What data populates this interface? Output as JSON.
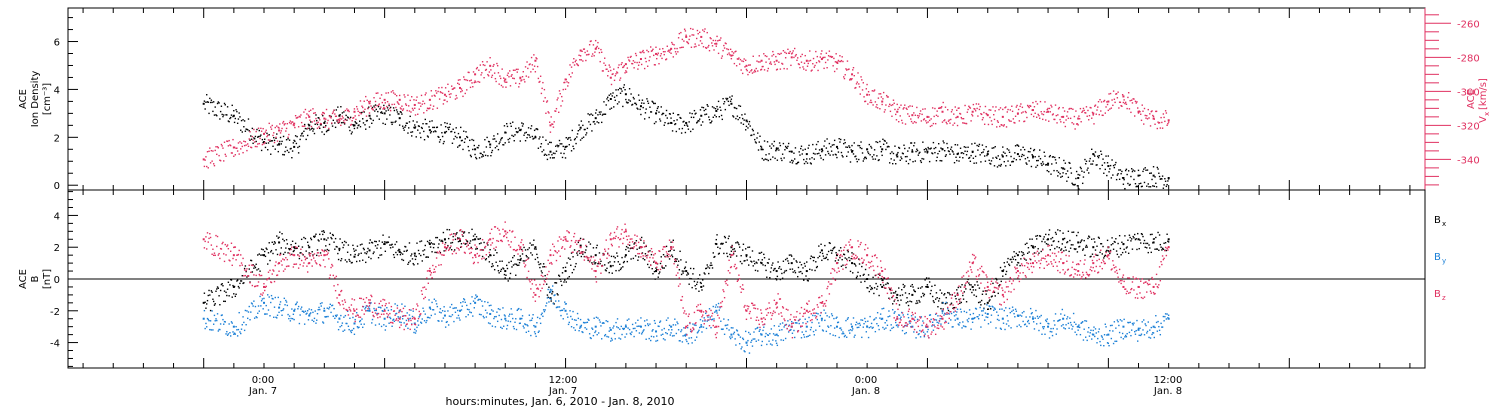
{
  "colors": {
    "black_series": "#000000",
    "red_series": "#e03060",
    "blue_series": "#1a7fd6",
    "frame": "#000000"
  },
  "xlabel": "hours:minutes, Jan.  6, 2010 - Jan.  8, 2010",
  "chart_data": [
    {
      "type": "scatter",
      "panel": "top",
      "left_axis": {
        "label": [
          "ACE",
          "Ion Density",
          "[cm⁻³]"
        ],
        "ylim": [
          -0.2,
          7.4
        ],
        "ticks": [
          0,
          2,
          4,
          6
        ],
        "tick_labels": [
          "0",
          "2",
          "4",
          "6"
        ]
      },
      "right_axis": {
        "label": [
          "ACE",
          "V",
          "x",
          "[km/s]"
        ],
        "ylim": [
          -358,
          -251
        ],
        "ticks": [
          -340,
          -320,
          -300,
          -280,
          -260
        ],
        "tick_labels": [
          "-340",
          "-320",
          "-300",
          "-280",
          "-260"
        ]
      },
      "x_hours": [
        0,
        2,
        4,
        5,
        6,
        7,
        8,
        9,
        10,
        11,
        12,
        13,
        14,
        15,
        16,
        17,
        18,
        19,
        20,
        21,
        22,
        23,
        24,
        25,
        26,
        27,
        28,
        29,
        30,
        31,
        32,
        33,
        34,
        35,
        36,
        37,
        38,
        39,
        40,
        41,
        42,
        43,
        44,
        45,
        46,
        47,
        48,
        49,
        50,
        51,
        52,
        53,
        54,
        55,
        56,
        57,
        58,
        59,
        60,
        61,
        62,
        63,
        64
      ],
      "series": [
        {
          "axis": "left",
          "color": "black",
          "values": [
            3.4,
            2.9,
            1.8,
            1.7,
            1.6,
            2.5,
            2.6,
            2.9,
            2.5,
            2.9,
            3.0,
            2.8,
            2.4,
            2.3,
            2.2,
            2.0,
            1.5,
            1.7,
            2.2,
            2.3,
            2.0,
            1.4,
            1.6,
            2.4,
            2.8,
            3.6,
            3.8,
            3.3,
            3.0,
            2.6,
            2.6,
            2.9,
            3.1,
            3.4,
            2.7,
            1.5,
            1.5,
            1.4,
            1.3,
            1.5,
            1.6,
            1.4,
            1.5,
            1.5,
            1.2,
            1.4,
            1.4,
            1.5,
            1.3,
            1.4,
            1.3,
            1.2,
            1.3,
            1.2,
            0.9,
            0.7,
            0.3,
            1.3,
            0.8,
            0.3,
            0.4,
            0.4,
            0.3
          ]
        },
        {
          "axis": "right",
          "color": "red",
          "values": [
            -340,
            -333,
            -325,
            -323,
            -319,
            -315,
            -316,
            -317,
            -312,
            -307,
            -305,
            -305,
            -308,
            -305,
            -302,
            -298,
            -290,
            -285,
            -293,
            -292,
            -282,
            -320,
            -293,
            -276,
            -275,
            -292,
            -284,
            -281,
            -278,
            -275,
            -268,
            -268,
            -272,
            -279,
            -285,
            -282,
            -282,
            -280,
            -282,
            -281,
            -283,
            -290,
            -302,
            -306,
            -312,
            -314,
            -315,
            -312,
            -315,
            -312,
            -314,
            -315,
            -313,
            -311,
            -312,
            -315,
            -316,
            -313,
            -306,
            -303,
            -312,
            -316,
            -317
          ]
        }
      ]
    },
    {
      "type": "scatter",
      "panel": "bottom",
      "left_axis": {
        "label": [
          "ACE",
          "B",
          "[nT]"
        ],
        "ylim": [
          -5.6,
          5.6
        ],
        "ticks": [
          -4,
          -2,
          0,
          2,
          4
        ],
        "tick_labels": [
          "-4",
          "-2",
          "0",
          "2",
          "4"
        ]
      },
      "legend": [
        {
          "text": "B",
          "subscript": "x",
          "color": "black"
        },
        {
          "text": "B",
          "subscript": "y",
          "color": "blue"
        },
        {
          "text": "B",
          "subscript": "z",
          "color": "red"
        }
      ],
      "x_hours": [
        0,
        2,
        4,
        5,
        6,
        7,
        8,
        9,
        10,
        11,
        12,
        13,
        14,
        15,
        16,
        17,
        18,
        19,
        20,
        21,
        22,
        23,
        24,
        25,
        26,
        27,
        28,
        29,
        30,
        31,
        32,
        33,
        34,
        35,
        36,
        37,
        38,
        39,
        40,
        41,
        42,
        43,
        44,
        45,
        46,
        47,
        48,
        49,
        50,
        51,
        52,
        53,
        54,
        55,
        56,
        57,
        58,
        59,
        60,
        61,
        62,
        63,
        64
      ],
      "series": [
        {
          "name": "Bx",
          "color": "black",
          "values": [
            -1.5,
            -0.5,
            1.5,
            2.3,
            2.0,
            2.0,
            2.5,
            1.9,
            1.4,
            1.8,
            2.2,
            1.7,
            1.6,
            2.2,
            2.5,
            2.4,
            2.5,
            1.5,
            0.5,
            1.2,
            2.0,
            -1.2,
            0.5,
            2.1,
            1.5,
            0.8,
            1.5,
            2.0,
            0.5,
            2.0,
            0.5,
            -0.5,
            2.2,
            2.0,
            1.5,
            1.0,
            0.5,
            1.0,
            0.5,
            1.8,
            1.5,
            1.0,
            0.0,
            -0.5,
            -1.0,
            -1.0,
            -0.5,
            -1.5,
            -1.0,
            -0.5,
            -1.5,
            0.5,
            1.5,
            2.0,
            2.5,
            2.5,
            2.3,
            2.0,
            2.0,
            2.2,
            2.5,
            2.3,
            2.5
          ]
        },
        {
          "name": "By",
          "color": "blue",
          "values": [
            -2.5,
            -3.0,
            -1.5,
            -1.8,
            -2.0,
            -2.3,
            -2.0,
            -2.5,
            -2.8,
            -2.0,
            -2.5,
            -2.0,
            -2.8,
            -1.8,
            -2.3,
            -2.0,
            -1.5,
            -2.2,
            -2.5,
            -2.5,
            -3.0,
            -0.8,
            -2.0,
            -3.0,
            -3.0,
            -3.2,
            -3.0,
            -3.0,
            -3.3,
            -3.0,
            -3.5,
            -3.0,
            -2.0,
            -3.5,
            -4.0,
            -3.5,
            -3.5,
            -3.0,
            -3.0,
            -2.5,
            -3.0,
            -3.0,
            -3.0,
            -2.5,
            -2.5,
            -3.0,
            -3.0,
            -2.0,
            -2.5,
            -2.5,
            -2.2,
            -2.5,
            -2.3,
            -2.5,
            -3.0,
            -2.5,
            -3.0,
            -3.5,
            -3.5,
            -3.0,
            -3.2,
            -3.0,
            -2.5
          ]
        },
        {
          "name": "Bz",
          "color": "red",
          "values": [
            2.5,
            1.5,
            -0.5,
            1.0,
            1.5,
            1.0,
            1.5,
            -1.0,
            -2.0,
            -1.5,
            -2.0,
            -2.5,
            -2.5,
            0.5,
            2.0,
            2.5,
            1.5,
            2.5,
            3.0,
            2.0,
            -1.0,
            1.5,
            2.5,
            2.0,
            0.5,
            2.5,
            3.0,
            2.0,
            1.0,
            2.0,
            -3.0,
            -2.0,
            -3.0,
            1.5,
            -2.0,
            -2.5,
            -1.5,
            -3.0,
            -2.0,
            -1.5,
            1.0,
            2.0,
            1.5,
            0.5,
            -2.5,
            -2.5,
            -3.0,
            -2.5,
            -1.0,
            1.0,
            -0.5,
            -1.0,
            0.5,
            1.0,
            1.5,
            1.0,
            0.5,
            1.0,
            1.5,
            -0.5,
            -0.5,
            -0.5,
            2.0
          ]
        }
      ]
    }
  ],
  "x_axis": {
    "xlim_hours": [
      -9,
      81
    ],
    "major_ticks": [
      0,
      12,
      24,
      36,
      48,
      60,
      72
    ],
    "minor_tick_step": 2,
    "tick_labels": [
      {
        "hour": 0,
        "line1": "0:00",
        "line2": "Jan. 7"
      },
      {
        "hour": 20,
        "line1": "12:00",
        "line2": "Jan. 7"
      },
      {
        "hour": 40,
        "line1": "0:00",
        "line2": "Jan. 8"
      },
      {
        "hour": 60,
        "line1": "12:00",
        "line2": "Jan. 8"
      }
    ]
  }
}
